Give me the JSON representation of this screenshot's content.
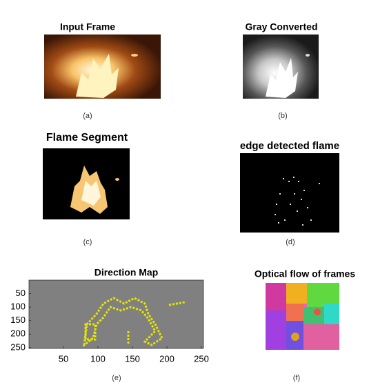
{
  "panels": [
    {
      "title": "Input Frame",
      "caption": "(a)"
    },
    {
      "title": "Gray Converted",
      "caption": "(b)"
    },
    {
      "title": "Flame Segment",
      "caption": "(c)"
    },
    {
      "title": "edge detected flame",
      "caption": "(d)"
    },
    {
      "title": "Direction Map",
      "caption": "(e)",
      "xticks": [
        50,
        100,
        150,
        200,
        250
      ],
      "yticks": [
        50,
        100,
        150,
        200,
        250
      ]
    },
    {
      "title": "Optical flow of frames",
      "caption": "(f)"
    }
  ]
}
